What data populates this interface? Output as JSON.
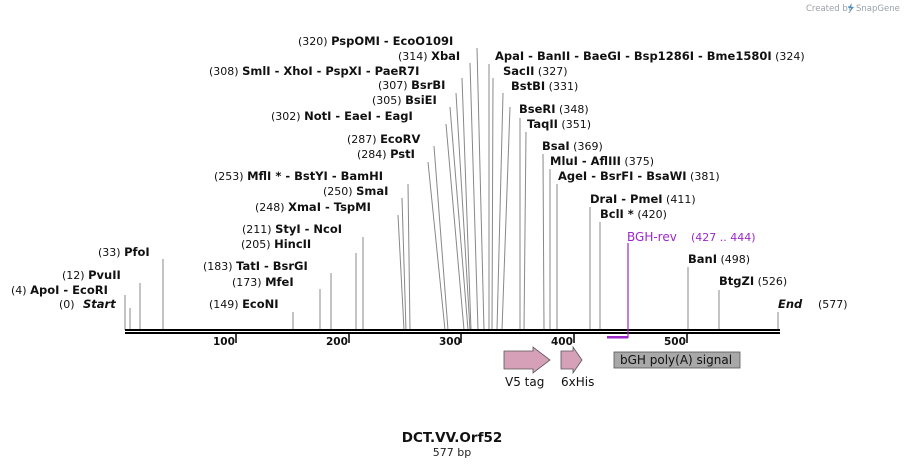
{
  "credit": {
    "text": "Created by",
    "brand": "SnapGene",
    "logo_icon": "snapgene-logo-icon"
  },
  "map": {
    "title": "DCT.VV.Orf52",
    "length_label": "577 bp",
    "start_label": "Start",
    "end_label": "End",
    "end_pos": "(577)",
    "start_pos": "(0)"
  },
  "ticks": [
    "100",
    "200",
    "300",
    "400",
    "500"
  ],
  "sites": [
    {
      "pos": "(4)",
      "names": [
        "ApoI",
        "EcoRI"
      ]
    },
    {
      "pos": "(12)",
      "names": [
        "PvuII"
      ]
    },
    {
      "pos": "(33)",
      "names": [
        "PfoI"
      ]
    },
    {
      "pos": "(149)",
      "names": [
        "EcoNI"
      ]
    },
    {
      "pos": "(173)",
      "names": [
        "MfeI"
      ]
    },
    {
      "pos": "(183)",
      "names": [
        "TatI",
        "BsrGI"
      ]
    },
    {
      "pos": "(205)",
      "names": [
        "HincII"
      ]
    },
    {
      "pos": "(211)",
      "names": [
        "StyI",
        "NcoI"
      ]
    },
    {
      "pos": "(248)",
      "names": [
        "XmaI",
        "TspMI"
      ]
    },
    {
      "pos": "(250)",
      "names": [
        "SmaI"
      ]
    },
    {
      "pos": "(253)",
      "names": [
        "MflI *",
        "BstYI",
        "BamHI"
      ]
    },
    {
      "pos": "(284)",
      "names": [
        "PstI"
      ]
    },
    {
      "pos": "(287)",
      "names": [
        "EcoRV"
      ]
    },
    {
      "pos": "(302)",
      "names": [
        "NotI",
        "EaeI",
        "EagI"
      ]
    },
    {
      "pos": "(305)",
      "names": [
        "BsiEI"
      ]
    },
    {
      "pos": "(307)",
      "names": [
        "BsrBI"
      ]
    },
    {
      "pos": "(308)",
      "names": [
        "SmlI",
        "XhoI",
        "PspXI",
        "PaeR7I"
      ]
    },
    {
      "pos": "(314)",
      "names": [
        "XbaI"
      ]
    },
    {
      "pos": "(320)",
      "names": [
        "PspOMI",
        "EcoO109I"
      ]
    },
    {
      "pos": "(324)",
      "names": [
        "ApaI",
        "BanII",
        "BaeGI",
        "Bsp1286I",
        "Bme1580I"
      ]
    },
    {
      "pos": "(327)",
      "names": [
        "SacII"
      ]
    },
    {
      "pos": "(331)",
      "names": [
        "BstBI"
      ]
    },
    {
      "pos": "(348)",
      "names": [
        "BseRI"
      ]
    },
    {
      "pos": "(351)",
      "names": [
        "TaqII"
      ]
    },
    {
      "pos": "(369)",
      "names": [
        "BsaI"
      ]
    },
    {
      "pos": "(375)",
      "names": [
        "MluI",
        "AflIII"
      ]
    },
    {
      "pos": "(381)",
      "names": [
        "AgeI",
        "BsrFI",
        "BsaWI"
      ]
    },
    {
      "pos": "(411)",
      "names": [
        "DraI",
        "PmeI"
      ]
    },
    {
      "pos": "(420)",
      "names": [
        "BclI *"
      ]
    },
    {
      "pos": "(498)",
      "names": [
        "BanI"
      ]
    },
    {
      "pos": "(526)",
      "names": [
        "BtgZI"
      ]
    }
  ],
  "primer": {
    "name": "BGH-rev",
    "range": "(427 .. 444)",
    "color": "#9c27c9"
  },
  "features": [
    {
      "name": "V5 tag",
      "color": "#d6a0b9"
    },
    {
      "name": "6xHis",
      "color": "#d6a0b9"
    },
    {
      "name": "bGH poly(A) signal",
      "color": "#a8a8a8"
    }
  ],
  "colors": {
    "backbone": "#000000",
    "leader": "#888888"
  }
}
